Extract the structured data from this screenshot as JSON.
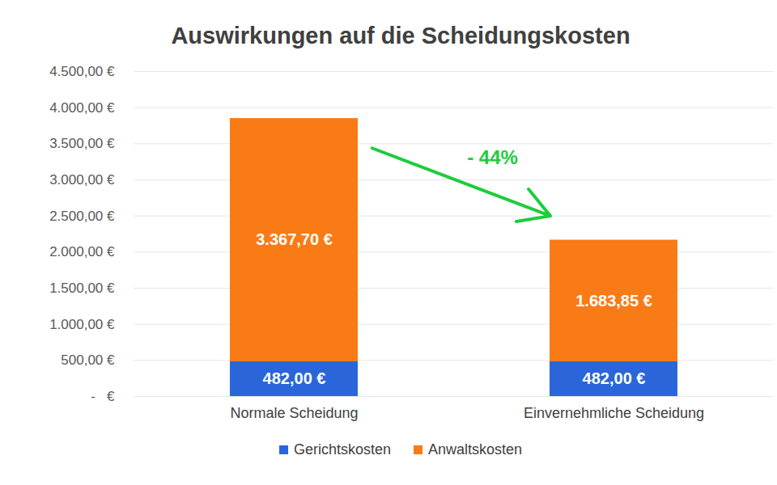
{
  "chart_data": {
    "type": "bar",
    "title": "Auswirkungen auf die Scheidungskosten",
    "categories": [
      "Normale Scheidung",
      "Einvernehmliche Scheidung"
    ],
    "series": [
      {
        "name": "Gerichtskosten",
        "color": "#2a66d9",
        "values": [
          482,
          482
        ],
        "value_labels": [
          "482,00 €",
          "482,00 €"
        ]
      },
      {
        "name": "Anwaltskosten",
        "color": "#f97b16",
        "values": [
          3367.7,
          1683.85
        ],
        "value_labels": [
          "3.367,70 €",
          "1.683,85 €"
        ]
      }
    ],
    "stacked": true,
    "data_labels": true,
    "ylim": [
      0,
      4500
    ],
    "yticks": [
      {
        "value": 0,
        "label": "-   €"
      },
      {
        "value": 500,
        "label": "500,00 €"
      },
      {
        "value": 1000,
        "label": "1.000,00 €"
      },
      {
        "value": 1500,
        "label": "1.500,00 €"
      },
      {
        "value": 2000,
        "label": "2.000,00 €"
      },
      {
        "value": 2500,
        "label": "2.500,00 €"
      },
      {
        "value": 3000,
        "label": "3.000,00 €"
      },
      {
        "value": 3500,
        "label": "3.500,00 €"
      },
      {
        "value": 4000,
        "label": "4.000,00 €"
      },
      {
        "value": 4500,
        "label": "4.500,00 €"
      }
    ],
    "grid": true,
    "legend": "bottom",
    "annotations": [
      {
        "text": "- 44%",
        "color": "#1fcc3c"
      }
    ]
  }
}
